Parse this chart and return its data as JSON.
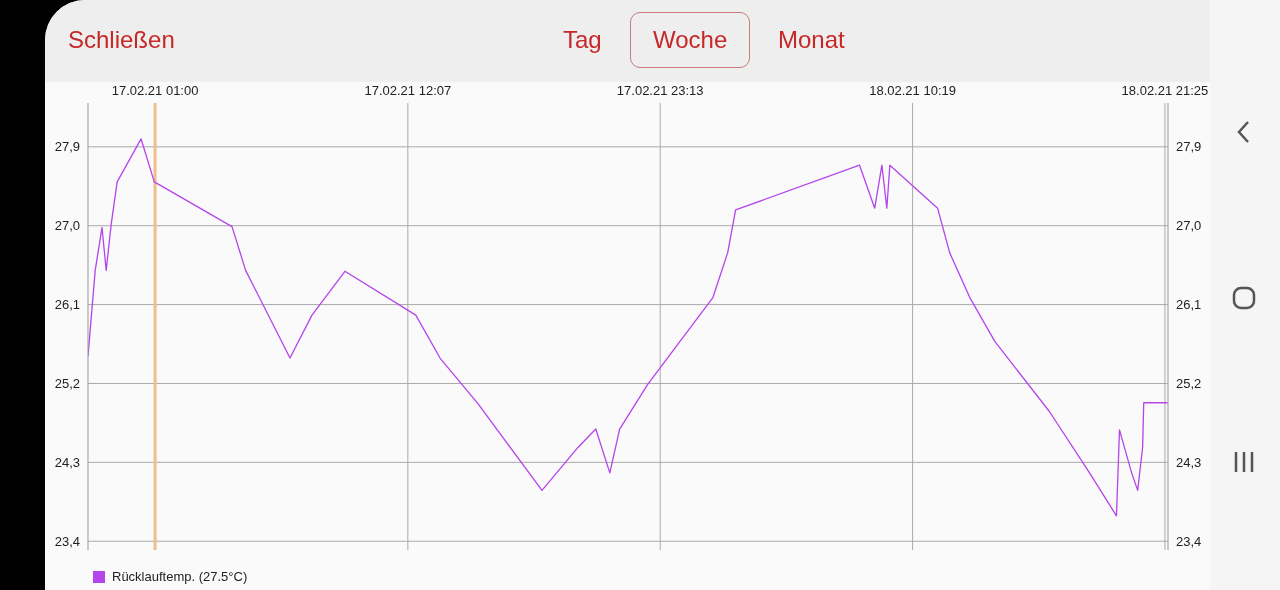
{
  "chart_data": {
    "type": "line",
    "annotations": [
      "Schließen",
      "Tag",
      "Woche",
      "Monat"
    ],
    "x": [
      "--02-16T22:03",
      "--02-16T22:22",
      "--02-16T22:40",
      "--02-16T22:51",
      "--02-16T23:04",
      "--02-16T23:20",
      "--02-17T00:23",
      "--02-17T00:58",
      "--02-17T04:23",
      "--02-17T04:59",
      "--02-17T06:56",
      "--02-17T07:54",
      "--02-17T09:21",
      "--02-17T12:28",
      "--02-17T13:32",
      "--02-17T15:12",
      "--02-17T18:01",
      "--02-17T19:36",
      "--02-17T20:23",
      "--02-17T21:00",
      "--02-17T21:26",
      "--02-17T22:40",
      "--02-18T01:32",
      "--02-18T02:11",
      "--02-18T02:32",
      "--02-18T07:59",
      "--02-18T08:39",
      "--02-18T08:58",
      "--02-18T09:11",
      "--02-18T09:19",
      "--02-18T11:25",
      "--02-18T11:57",
      "--02-18T12:50",
      "--02-18T13:56",
      "--02-18T16:20",
      "--02-18T18:06",
      "--02-18T19:17",
      "--02-18T19:25",
      "--02-18T19:57",
      "--02-18T20:13",
      "--02-18T20:26",
      "--02-18T20:29",
      "--02-18T21:32"
    ],
    "series": [
      {
        "name": "Rücklauftemp. (27.5°C)",
        "color": "#b444ec",
        "values": [
          25.51,
          26.49,
          26.98,
          26.49,
          27.01,
          27.5,
          27.99,
          27.5,
          26.99,
          26.49,
          25.49,
          25.98,
          26.48,
          25.98,
          25.49,
          24.97,
          23.98,
          24.47,
          24.68,
          24.18,
          24.68,
          25.19,
          26.18,
          26.69,
          27.18,
          27.69,
          27.2,
          27.69,
          27.2,
          27.69,
          27.2,
          26.69,
          26.18,
          25.68,
          24.88,
          24.18,
          23.69,
          24.67,
          24.18,
          23.98,
          24.47,
          24.98,
          24.98
        ]
      }
    ],
    "xlim": [
      "--02-16T22:03",
      "--02-18T21:33"
    ],
    "xticks": [
      {
        "value": "--02-17T01:00",
        "label": "17.02.21 01:00"
      },
      {
        "value": "--02-17T12:07",
        "label": "17.02.21 12:07"
      },
      {
        "value": "--02-17T23:13",
        "label": "17.02.21 23:13"
      },
      {
        "value": "--02-18T10:19",
        "label": "18.02.21 10:19"
      },
      {
        "value": "--02-18T21:25",
        "label": "18.02.21 21:25"
      }
    ],
    "ylim": [
      23.3,
      28.4
    ],
    "yticks": [
      {
        "value": 23.4,
        "label": "23,4"
      },
      {
        "value": 24.3,
        "label": "24,3"
      },
      {
        "value": 25.2,
        "label": "25,2"
      },
      {
        "value": 26.1,
        "label": "26,1"
      },
      {
        "value": 27.0,
        "label": "27,0"
      },
      {
        "value": 27.9,
        "label": "27,9"
      }
    ],
    "y2lim": [
      23.3,
      28.4
    ],
    "y2ticks": [
      {
        "value": 23.4,
        "label": "23,4"
      },
      {
        "value": 24.3,
        "label": "24,3"
      },
      {
        "value": 25.2,
        "label": "25,2"
      },
      {
        "value": 26.1,
        "label": "26,1"
      },
      {
        "value": 27.0,
        "label": "27,0"
      },
      {
        "value": 27.9,
        "label": "27,9"
      }
    ],
    "ref_lines": [
      {
        "axis": "x",
        "value": "--02-17T01:00",
        "color": "#f0be8c"
      }
    ],
    "grid": true,
    "legend": "bottom left",
    "marker": "none"
  }
}
